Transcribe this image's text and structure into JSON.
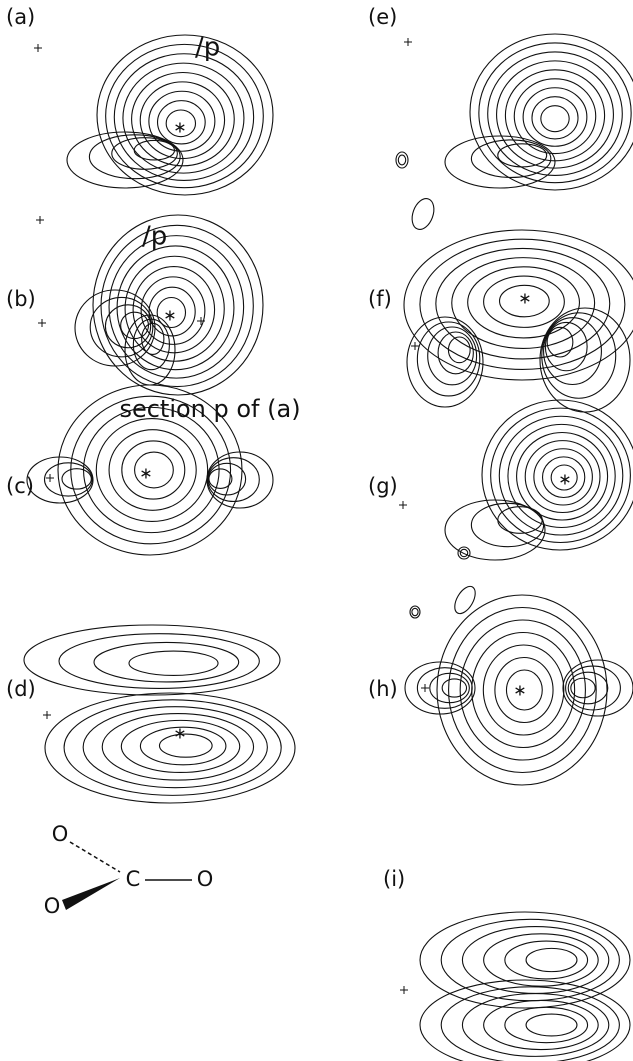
{
  "panels": [
    {
      "label": "(a)"
    },
    {
      "label": "(b)"
    },
    {
      "label": "(c)"
    },
    {
      "label": "(d)"
    },
    {
      "label": "(e)"
    },
    {
      "label": "(f)"
    },
    {
      "label": "(g)"
    },
    {
      "label": "(h)"
    },
    {
      "label": "(i)"
    }
  ],
  "annotations": {
    "section_mark_a": "/p",
    "section_mark_b": "/p",
    "section_caption": "section p of (a)"
  },
  "molecule": {
    "atoms": [
      "O",
      "C",
      "O",
      "O"
    ]
  }
}
